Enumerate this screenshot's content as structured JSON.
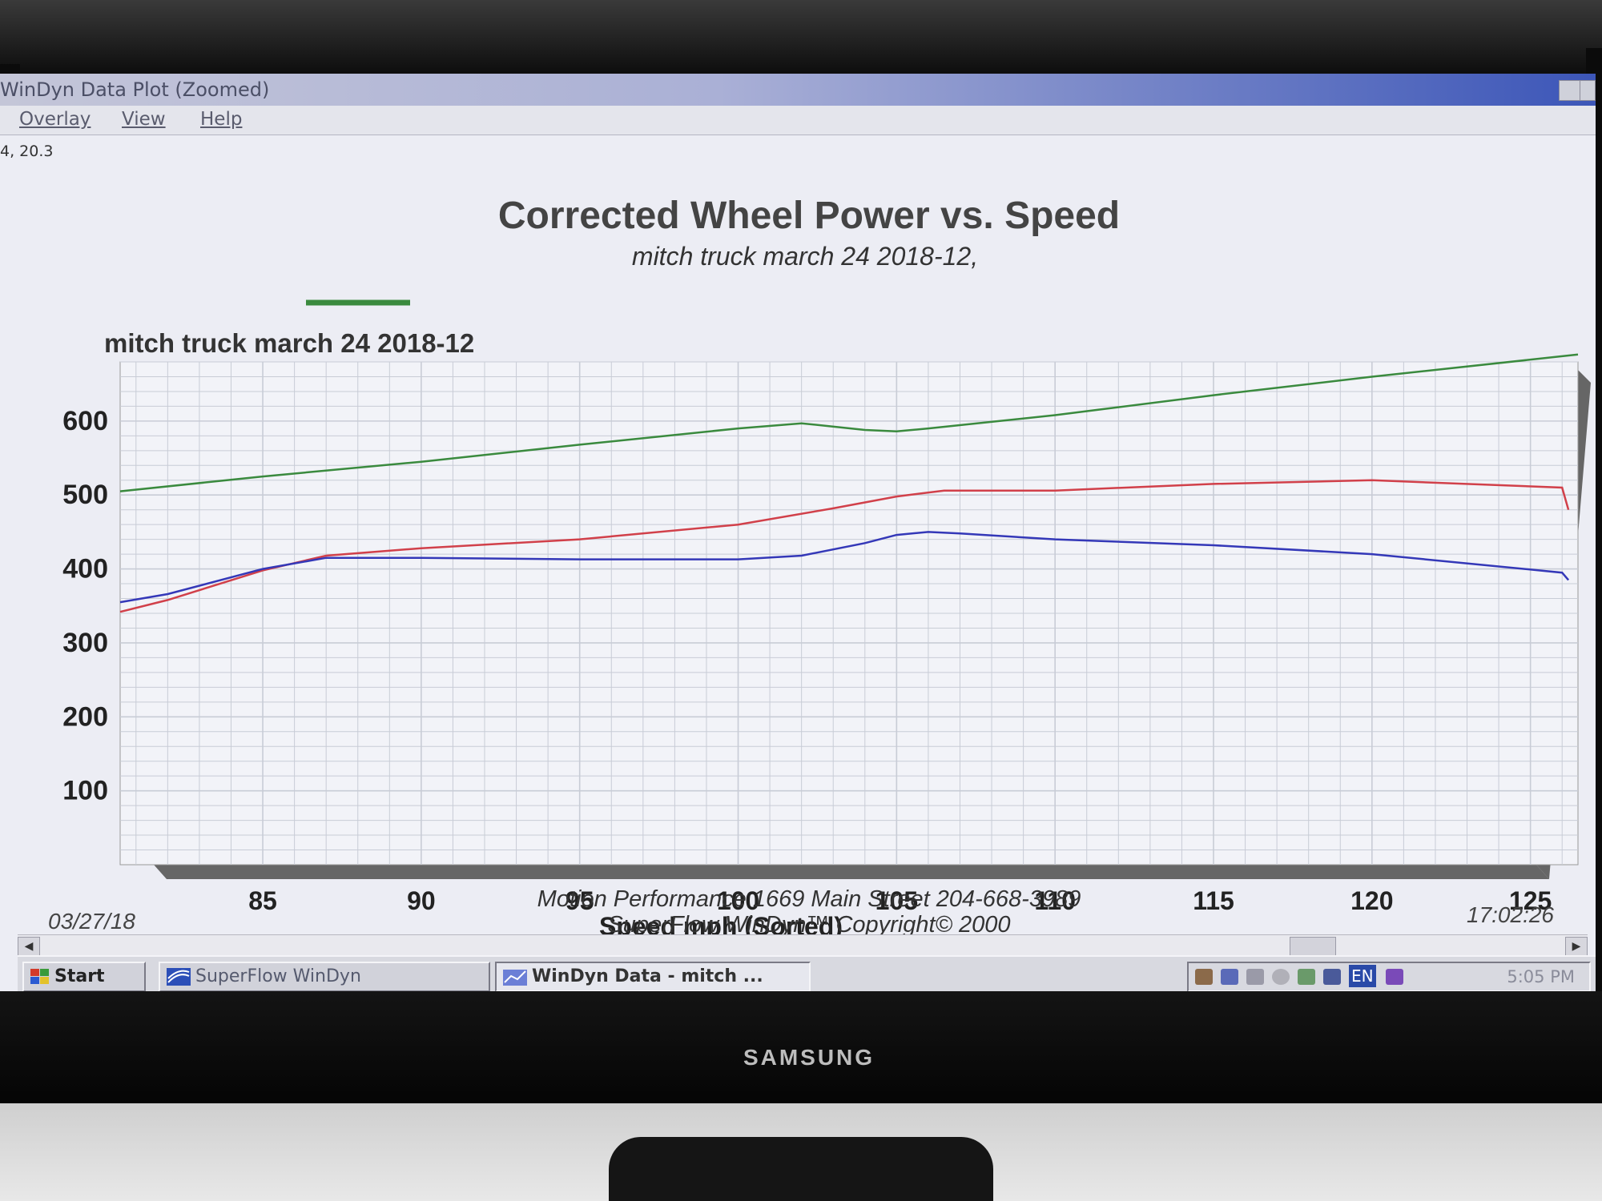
{
  "window": {
    "title": "WinDyn Data Plot  (Zoomed)",
    "menu": [
      "Overlay",
      "View",
      "Help"
    ],
    "coords": "4, 20.3"
  },
  "chart_footer": {
    "date": "03/27/18",
    "time": "17:02:26",
    "shop": "Motion Performance 1669 Main Street 204-668-3989",
    "software": "SuperFlow WinDyn™   Copyright© 2000"
  },
  "taskbar": {
    "start_label": "Start",
    "tasks": [
      "SuperFlow WinDyn",
      "WinDyn Data - mitch ..."
    ],
    "tray_lang": "EN",
    "clock": "5:05 PM"
  },
  "monitor": {
    "brand": "SAMSUNG"
  },
  "colors": {
    "green": "#3a8a3e",
    "red": "#d1404a",
    "blue": "#3438b8",
    "grid": "#c8ccd6"
  },
  "chart_data": {
    "type": "line",
    "title": "Corrected Wheel Power vs. Speed",
    "subtitle": "mitch truck march 24 2018-12,",
    "legend_label": "mitch truck march 24 2018-12",
    "xlabel": "Speed   mph   (Sorted)",
    "x_ticks": [
      85,
      90,
      95,
      100,
      105,
      110,
      115,
      120,
      125
    ],
    "y_ticks": [
      100,
      200,
      300,
      400,
      500,
      600
    ],
    "xlim": [
      80.5,
      126.5
    ],
    "ylim": [
      0,
      680
    ],
    "grid": true,
    "series": [
      {
        "color": "#3a8a3e",
        "x": [
          80.5,
          85,
          90,
          95,
          100,
          102,
          104,
          105,
          106,
          110,
          115,
          120,
          126.5
        ],
        "y": [
          505,
          525,
          545,
          568,
          590,
          597,
          588,
          586,
          590,
          608,
          635,
          660,
          690
        ]
      },
      {
        "color": "#d1404a",
        "x": [
          80.5,
          82,
          85,
          87,
          90,
          95,
          100,
          103,
          105,
          106.5,
          110,
          115,
          120,
          126,
          126.2
        ],
        "y": [
          342,
          358,
          398,
          418,
          428,
          440,
          460,
          482,
          498,
          506,
          506,
          515,
          520,
          510,
          480
        ]
      },
      {
        "color": "#3438b8",
        "x": [
          80.5,
          82,
          85,
          87,
          90,
          95,
          100,
          102,
          104,
          105,
          106,
          107,
          110,
          115,
          120,
          126,
          126.2
        ],
        "y": [
          355,
          366,
          400,
          415,
          415,
          413,
          413,
          418,
          435,
          446,
          450,
          448,
          440,
          432,
          420,
          395,
          385
        ]
      }
    ]
  }
}
